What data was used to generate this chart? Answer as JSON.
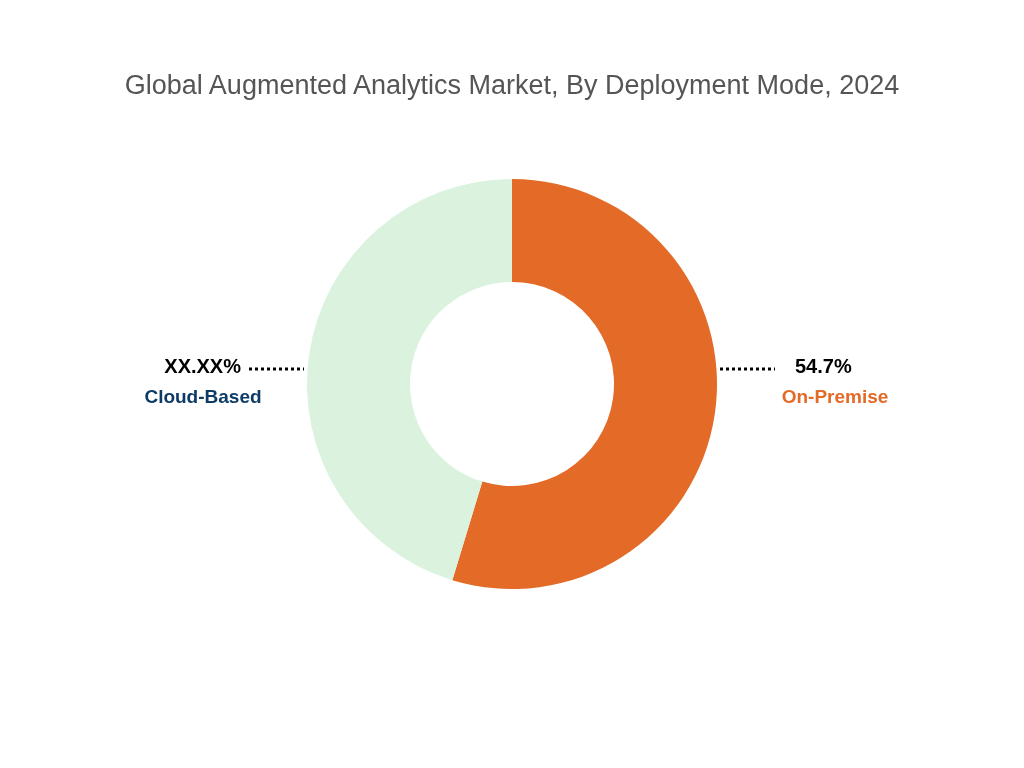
{
  "chart_data": {
    "type": "donut",
    "title": "Global Augmented Analytics Market, By Deployment Mode, 2024",
    "categories": [
      "On-Premise",
      "Cloud-Based"
    ],
    "values": [
      54.7,
      45.3
    ],
    "colors": [
      "#e36a27",
      "#daf2de"
    ],
    "value_labels": [
      "54.7%",
      "XX.XX%"
    ],
    "legend": false
  }
}
